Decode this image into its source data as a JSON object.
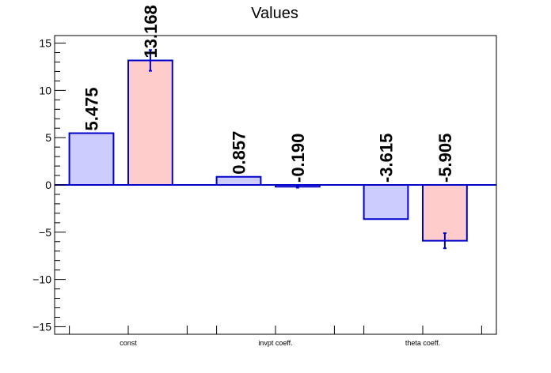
{
  "chart_data": {
    "type": "bar",
    "title": "Values",
    "categories": [
      "const",
      "invpt coeff.",
      "theta coeff."
    ],
    "series": [
      {
        "values": [
          5.475,
          0.857,
          -3.615
        ],
        "value_labels": [
          "5.475",
          "0.857",
          "-3.615"
        ],
        "errors": [
          0,
          0,
          0
        ],
        "fill": "#ccccff",
        "stroke": "#0000cc"
      },
      {
        "values": [
          13.168,
          -0.19,
          -5.905
        ],
        "value_labels": [
          "13.168",
          "-0.190",
          "-5.905"
        ],
        "errors": [
          1.1,
          0.1,
          0.8
        ],
        "fill": "#ffcccc",
        "stroke": "#0000cc"
      }
    ],
    "ylim": [
      -15.8,
      15.8
    ],
    "yticks": [
      {
        "value": 15,
        "label": "15"
      },
      {
        "value": 10,
        "label": "10"
      },
      {
        "value": 5,
        "label": "5"
      },
      {
        "value": 0,
        "label": "0"
      },
      {
        "value": -5,
        "label": "−5"
      },
      {
        "value": -10,
        "label": "−10"
      },
      {
        "value": -15,
        "label": "−15"
      }
    ],
    "yminor_step": 1,
    "grid": false,
    "legend": "none",
    "zero_line_color": "#0000cc",
    "error_bar_color": "#0000cc"
  }
}
